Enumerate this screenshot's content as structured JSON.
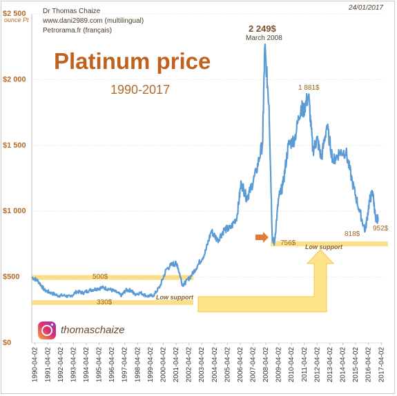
{
  "header": {
    "author": "Dr Thomas Chaize",
    "site1": "www.dani2989.com (multilingual)",
    "site2": "Petrorama.fr  (français)",
    "date": "24/01/2017"
  },
  "social": {
    "icon": "instagram-icon",
    "handle": "thomaschaize"
  },
  "colors": {
    "line": "#5b9bd5",
    "band": "#fbd973",
    "arrow": "#fde38a",
    "title": "#c0621e",
    "accent_arrow": "#e07b39"
  },
  "chart_data": {
    "type": "line",
    "title": "Platinum price",
    "subtitle": "1990-2017",
    "ylabel": "ounce Pt",
    "ylim": [
      0,
      2500
    ],
    "y_ticks": [
      0,
      500,
      1000,
      1500,
      2000,
      2500
    ],
    "y_tick_labels": [
      "$0",
      "$500",
      "$1 000",
      "$1 500",
      "$2 000",
      "$2 500"
    ],
    "x_tick_labels": [
      "1990-04-02",
      "1991-04-02",
      "1992-04-02",
      "1993-04-02",
      "1994-04-02",
      "1995-04-02",
      "1996-04-02",
      "1997-04-02",
      "1998-04-02",
      "1999-04-02",
      "2000-04-02",
      "2001-04-02",
      "2002-04-02",
      "2003-04-02",
      "2004-04-02",
      "2005-04-02",
      "2006-04-02",
      "2007-04-02",
      "2008-04-02",
      "2009-04-02",
      "2010-04-02",
      "2011-04-02",
      "2012-04-02",
      "2013-04-02",
      "2014-04-02",
      "2015-04-02",
      "2016-04-02",
      "2017-04-02"
    ],
    "grid": "horizontal",
    "series": [
      {
        "x": [
          "1990-01",
          "1990-07",
          "1991-01",
          "1991-07",
          "1992-01",
          "1992-07",
          "1993-01",
          "1993-07",
          "1994-01",
          "1994-07",
          "1995-01",
          "1995-07",
          "1996-01",
          "1996-07",
          "1997-01",
          "1997-05",
          "1997-10",
          "1998-01",
          "1998-07",
          "1999-01",
          "1999-07",
          "2000-01",
          "2000-07",
          "2001-01",
          "2001-05",
          "2001-10",
          "2002-01",
          "2002-07",
          "2003-01",
          "2003-07",
          "2004-01",
          "2004-07",
          "2005-01",
          "2005-07",
          "2006-01",
          "2006-05",
          "2006-10",
          "2007-01",
          "2007-07",
          "2008-01",
          "2008-03",
          "2008-07",
          "2008-10",
          "2008-12",
          "2009-04",
          "2009-08",
          "2010-01",
          "2010-07",
          "2011-01",
          "2011-03",
          "2011-08",
          "2011-12",
          "2012-04",
          "2012-08",
          "2013-01",
          "2013-07",
          "2014-01",
          "2014-07",
          "2015-01",
          "2015-07",
          "2016-01",
          "2016-05",
          "2016-08",
          "2016-11",
          "2017-01"
        ],
        "values": [
          500,
          470,
          400,
          380,
          360,
          360,
          350,
          390,
          380,
          400,
          410,
          420,
          410,
          390,
          360,
          400,
          400,
          370,
          380,
          355,
          360,
          430,
          560,
          600,
          600,
          440,
          460,
          520,
          600,
          680,
          850,
          780,
          860,
          870,
          960,
          1220,
          1100,
          1150,
          1300,
          1520,
          2249,
          1800,
          800,
          756,
          1100,
          1200,
          1500,
          1550,
          1800,
          1760,
          1881,
          1460,
          1550,
          1400,
          1650,
          1380,
          1450,
          1450,
          1220,
          1020,
          850,
          1080,
          1150,
          920,
          952
        ]
      }
    ],
    "annotations": {
      "peak_value": "2 249$",
      "peak_date": "March 2008",
      "high_2011": "1 881$",
      "low_2008": "756$",
      "low_2016": "818$",
      "last": "952$",
      "support_500": "500$",
      "support_330": "330$",
      "low_support_1": "Low support",
      "low_support_2": "Low support"
    }
  }
}
